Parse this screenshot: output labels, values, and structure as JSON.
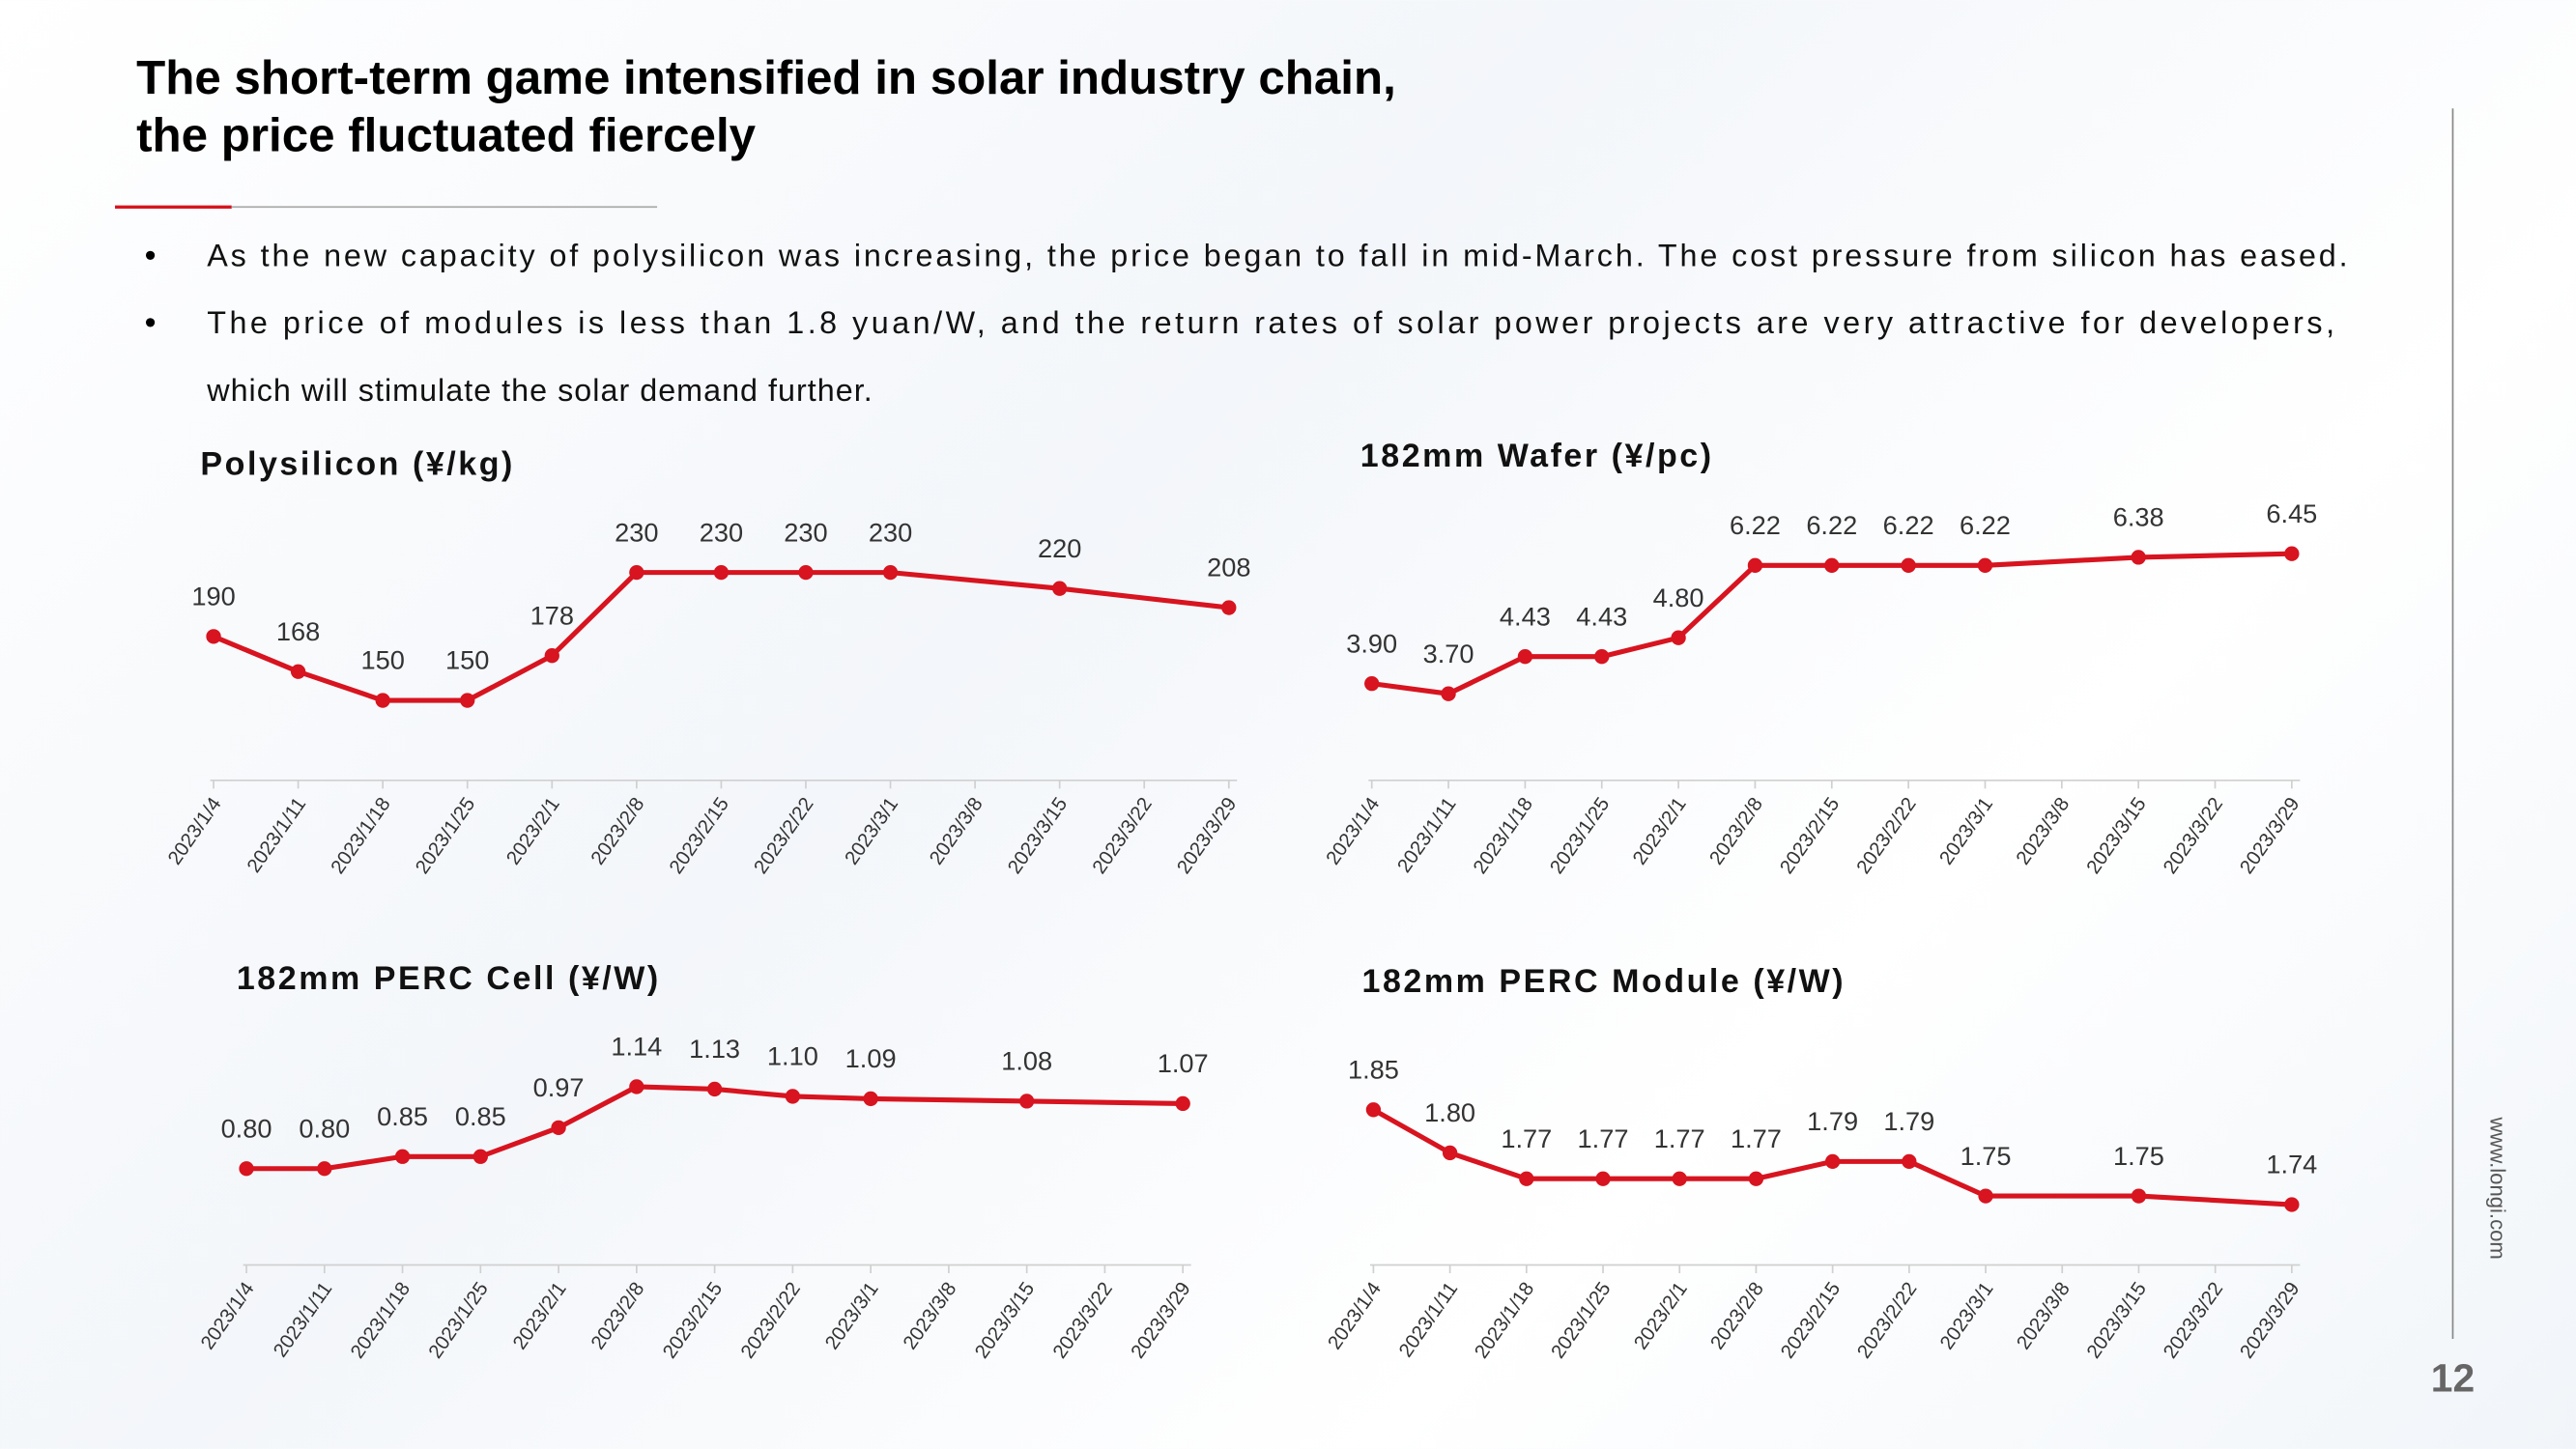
{
  "header": {
    "title": [
      "The short-term game intensified in solar industry chain,",
      "the price fluctuated fiercely"
    ]
  },
  "bullets": [
    [
      "As the new capacity of polysilicon was increasing, the price began to fall in mid-March. The cost pressure from silicon has eased."
    ],
    [
      "The price of modules is less than 1.8 yuan/W, and the return rates of solar power projects are very attractive for developers,",
      "which will stimulate the solar demand further."
    ]
  ],
  "footer": {
    "site": "www.longi.com",
    "page": "12"
  },
  "chart_data": [
    {
      "type": "line",
      "title": "Polysilicon  (¥/kg)",
      "color": "#d7141f",
      "x": [
        "2023/1/4",
        "2023/1/11",
        "2023/1/18",
        "2023/1/25",
        "2023/2/1",
        "2023/2/8",
        "2023/2/15",
        "2023/2/22",
        "2023/3/1",
        "2023/3/15",
        "2023/3/29"
      ],
      "values": [
        190,
        168,
        150,
        150,
        178,
        230,
        230,
        230,
        230,
        220,
        208
      ],
      "xlim": [
        "2023/1/4",
        "2023/3/29"
      ],
      "ylim": [
        100,
        250
      ],
      "xticks": [
        "2023/1/4",
        "2023/1/11",
        "2023/1/18",
        "2023/1/25",
        "2023/2/1",
        "2023/2/8",
        "2023/2/15",
        "2023/2/22",
        "2023/3/1",
        "2023/3/8",
        "2023/3/15",
        "2023/3/22",
        "2023/3/29"
      ]
    },
    {
      "type": "line",
      "title": "182mm Wafer  (¥/pc)",
      "color": "#d7141f",
      "x": [
        "2023/1/4",
        "2023/1/11",
        "2023/1/18",
        "2023/1/25",
        "2023/2/1",
        "2023/2/8",
        "2023/2/15",
        "2023/2/22",
        "2023/3/1",
        "2023/3/15",
        "2023/3/29"
      ],
      "values": [
        3.9,
        3.7,
        4.43,
        4.43,
        4.8,
        6.22,
        6.22,
        6.22,
        6.22,
        6.38,
        6.45
      ],
      "value_labels": [
        "3.90",
        "3.70",
        "4.43",
        "4.43",
        "4.80",
        "6.22",
        "6.22",
        "6.22",
        "6.22",
        "6.38",
        "6.45"
      ],
      "xlim": [
        "2023/1/4",
        "2023/3/29"
      ],
      "ylim": [
        2,
        7
      ],
      "xticks": [
        "2023/1/4",
        "2023/1/11",
        "2023/1/18",
        "2023/1/25",
        "2023/2/1",
        "2023/2/8",
        "2023/2/15",
        "2023/2/22",
        "2023/3/1",
        "2023/3/8",
        "2023/3/15",
        "2023/3/22",
        "2023/3/29"
      ]
    },
    {
      "type": "line",
      "title": "182mm PERC Cell  (¥/W)",
      "color": "#d7141f",
      "x": [
        "2023/1/4",
        "2023/1/11",
        "2023/1/18",
        "2023/1/25",
        "2023/2/1",
        "2023/2/8",
        "2023/2/15",
        "2023/2/22",
        "2023/3/1",
        "2023/3/15",
        "2023/3/29"
      ],
      "values": [
        0.8,
        0.8,
        0.85,
        0.85,
        0.97,
        1.14,
        1.13,
        1.1,
        1.09,
        1.08,
        1.07
      ],
      "value_labels": [
        "0.80",
        "0.80",
        "0.85",
        "0.85",
        "0.97",
        "1.14",
        "1.13",
        "1.10",
        "1.09",
        "1.08",
        "1.07"
      ],
      "xlim": [
        "2023/1/4",
        "2023/3/29"
      ],
      "ylim": [
        0.4,
        1.3
      ],
      "xticks": [
        "2023/1/4",
        "2023/1/11",
        "2023/1/18",
        "2023/1/25",
        "2023/2/1",
        "2023/2/8",
        "2023/2/15",
        "2023/2/22",
        "2023/3/1",
        "2023/3/8",
        "2023/3/15",
        "2023/3/22",
        "2023/3/29"
      ]
    },
    {
      "type": "line",
      "title": "182mm PERC Module  (¥/W)",
      "color": "#d7141f",
      "x": [
        "2023/1/4",
        "2023/1/11",
        "2023/1/18",
        "2023/1/25",
        "2023/2/1",
        "2023/2/8",
        "2023/2/15",
        "2023/2/22",
        "2023/3/1",
        "2023/3/15",
        "2023/3/29"
      ],
      "values": [
        1.85,
        1.8,
        1.77,
        1.77,
        1.77,
        1.77,
        1.79,
        1.79,
        1.75,
        1.75,
        1.74
      ],
      "value_labels": [
        "1.85",
        "1.80",
        "1.77",
        "1.77",
        "1.77",
        "1.77",
        "1.79",
        "1.79",
        "1.75",
        "1.75",
        "1.74"
      ],
      "xlim": [
        "2023/1/4",
        "2023/3/29"
      ],
      "ylim": [
        1.67,
        1.87
      ],
      "xticks": [
        "2023/1/4",
        "2023/1/11",
        "2023/1/18",
        "2023/1/25",
        "2023/2/1",
        "2023/2/8",
        "2023/2/15",
        "2023/2/22",
        "2023/3/1",
        "2023/3/8",
        "2023/3/15",
        "2023/3/22",
        "2023/3/29"
      ]
    }
  ]
}
